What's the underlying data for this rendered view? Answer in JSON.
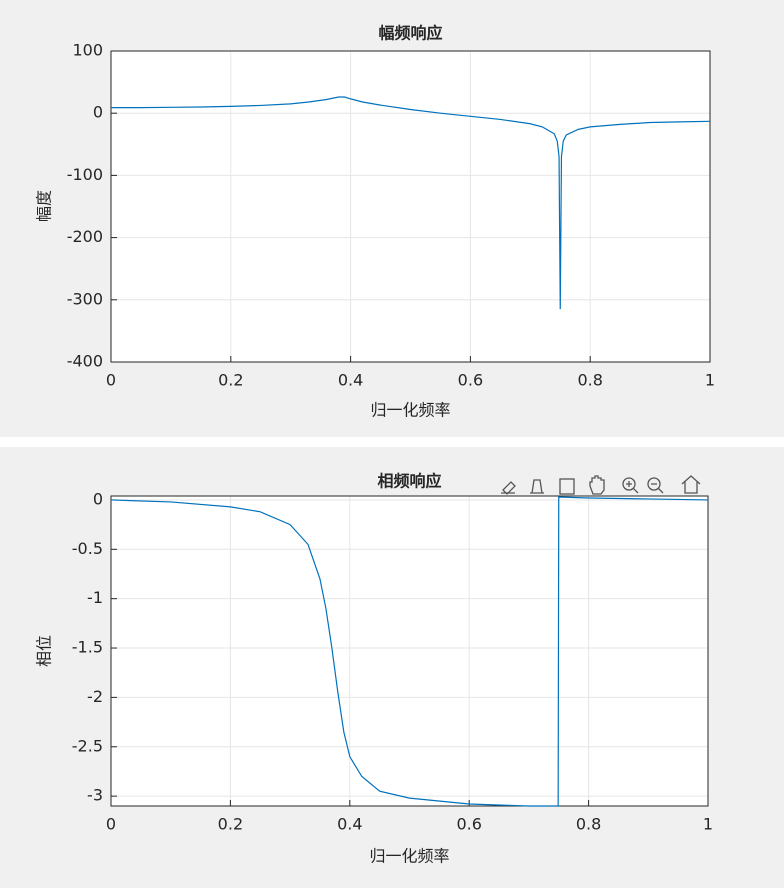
{
  "chart_data": [
    {
      "type": "line",
      "title": "幅频响应",
      "x_label": "归一化频率",
      "y_label": "幅度",
      "x": [
        0,
        0.05,
        0.1,
        0.15,
        0.2,
        0.25,
        0.3,
        0.33,
        0.36,
        0.38,
        0.39,
        0.4,
        0.42,
        0.45,
        0.5,
        0.55,
        0.6,
        0.65,
        0.7,
        0.72,
        0.74,
        0.745,
        0.748,
        0.75,
        0.752,
        0.755,
        0.76,
        0.78,
        0.8,
        0.85,
        0.9,
        0.95,
        1
      ],
      "values": [
        9,
        9,
        9.5,
        10,
        11,
        12.5,
        15,
        18,
        22,
        26,
        26,
        23,
        18,
        13,
        6,
        0,
        -5,
        -10,
        -17,
        -22,
        -33,
        -45,
        -70,
        -315,
        -70,
        -45,
        -35,
        -26,
        -22,
        -18,
        -15,
        -14,
        -13
      ],
      "color": "#0072bd",
      "xlim": [
        0,
        1
      ],
      "ylim": [
        -400,
        100
      ],
      "xticks": [
        0,
        0.2,
        0.4,
        0.6,
        0.8,
        1
      ],
      "yticks": [
        100,
        0,
        -100,
        -200,
        -300,
        -400
      ],
      "grid": true
    },
    {
      "type": "line",
      "title": "相频响应",
      "x_label": "归一化频率",
      "y_label": "相位",
      "x": [
        0,
        0.1,
        0.2,
        0.25,
        0.3,
        0.33,
        0.35,
        0.36,
        0.37,
        0.38,
        0.39,
        0.4,
        0.42,
        0.45,
        0.5,
        0.6,
        0.7,
        0.749,
        0.75,
        0.8,
        0.9,
        1
      ],
      "values": [
        0,
        -0.02,
        -0.07,
        -0.12,
        -0.25,
        -0.45,
        -0.8,
        -1.1,
        -1.5,
        -1.95,
        -2.35,
        -2.6,
        -2.8,
        -2.95,
        -3.02,
        -3.08,
        -3.1,
        -3.1,
        0.03,
        0.02,
        0.01,
        0
      ],
      "color": "#0072bd",
      "xlim": [
        0,
        1
      ],
      "ylim": [
        -3.1,
        0.04
      ],
      "xticks": [
        0,
        0.2,
        0.4,
        0.6,
        0.8,
        1
      ],
      "yticks": [
        0,
        -0.5,
        -1,
        -1.5,
        -2,
        -2.5,
        -3
      ],
      "grid": true
    }
  ]
}
